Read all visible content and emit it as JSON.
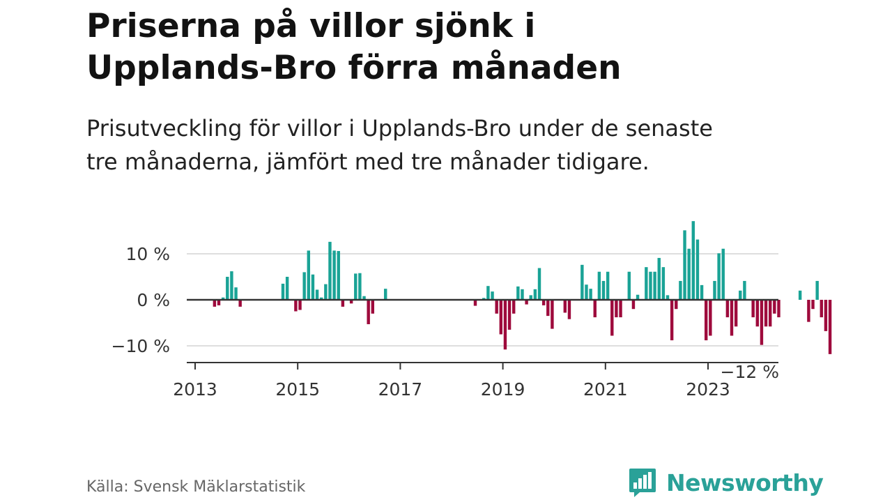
{
  "header": {
    "title_line1": "Priserna på villor sjönk i",
    "title_line2": "Upplands-Bro förra månaden",
    "subtitle_line1": "Prisutveckling för villor i Upplands-Bro under de senaste",
    "subtitle_line2": "tre månaderna, jämfört med tre månader tidigare."
  },
  "footer": {
    "source": "Källa: Svensk Mäklarstatistik",
    "brand": "Newsworthy",
    "brand_icon": "newsworthy-logo-icon"
  },
  "colors": {
    "positive": "#1aa396",
    "negative": "#9e0a3c",
    "grid": "#dedede",
    "axis": "#333333"
  },
  "chart_data": {
    "type": "bar",
    "title": "Priserna på villor sjönk i Upplands-Bro förra månaden",
    "xlabel": "",
    "ylabel": "",
    "unit": "%",
    "x_start": 2013.0,
    "x_step_years": 0.0833333,
    "xlim": [
      2013.0,
      2024.4
    ],
    "ylim": [
      -14,
      18
    ],
    "yticks": [
      10,
      0,
      -10
    ],
    "ytick_labels": [
      "10 %",
      "0 %",
      "−10 %"
    ],
    "xticks": [
      2013,
      2015,
      2017,
      2019,
      2021,
      2023
    ],
    "xtick_labels": [
      "2013",
      "2015",
      "2017",
      "2019",
      "2021",
      "2023"
    ],
    "grid": true,
    "annotation": {
      "text": "−12 %",
      "target": "last"
    },
    "values": [
      null,
      null,
      null,
      null,
      null,
      null,
      -1.5,
      -1.2,
      0.5,
      5,
      6.2,
      2.7,
      -1.5,
      null,
      null,
      null,
      null,
      null,
      null,
      null,
      null,
      null,
      3.5,
      5,
      null,
      -2.5,
      -2.2,
      6,
      10.7,
      5.5,
      2.2,
      0.5,
      3.4,
      12.6,
      10.7,
      10.6,
      -1.5,
      null,
      -0.8,
      5.7,
      5.8,
      0.8,
      -5.3,
      -3,
      null,
      null,
      2.4,
      null,
      null,
      null,
      null,
      null,
      null,
      null,
      null,
      null,
      null,
      null,
      null,
      null,
      null,
      null,
      null,
      null,
      null,
      null,
      null,
      -1.3,
      null,
      0.4,
      3,
      1.8,
      -3,
      -7.5,
      -10.8,
      -6.5,
      -3,
      2.9,
      2.3,
      -1,
      1,
      2.3,
      6.9,
      -1.2,
      -3.5,
      -6.3,
      null,
      null,
      -2.8,
      -4.2,
      null,
      null,
      7.6,
      3.3,
      2.4,
      -3.8,
      6.1,
      4.1,
      6.1,
      -7.8,
      -3.8,
      -3.8,
      null,
      6.1,
      -2,
      1.1,
      null,
      7.1,
      6.1,
      6.1,
      9.1,
      7.1,
      1,
      -8.8,
      -2,
      4.1,
      15.1,
      11.1,
      17.1,
      13.1,
      3.2,
      -8.8,
      -7.8,
      4.1,
      10.1,
      11.1,
      -3.8,
      -7.8,
      -5.8,
      2,
      4.1,
      null,
      -3.8,
      -5.8,
      -9.8,
      -5.8,
      -5.8,
      -3,
      -3.8,
      null,
      null,
      null,
      null,
      2,
      null,
      -4.8,
      -2,
      4.1,
      -3.8,
      -6.8,
      -11.8
    ]
  }
}
